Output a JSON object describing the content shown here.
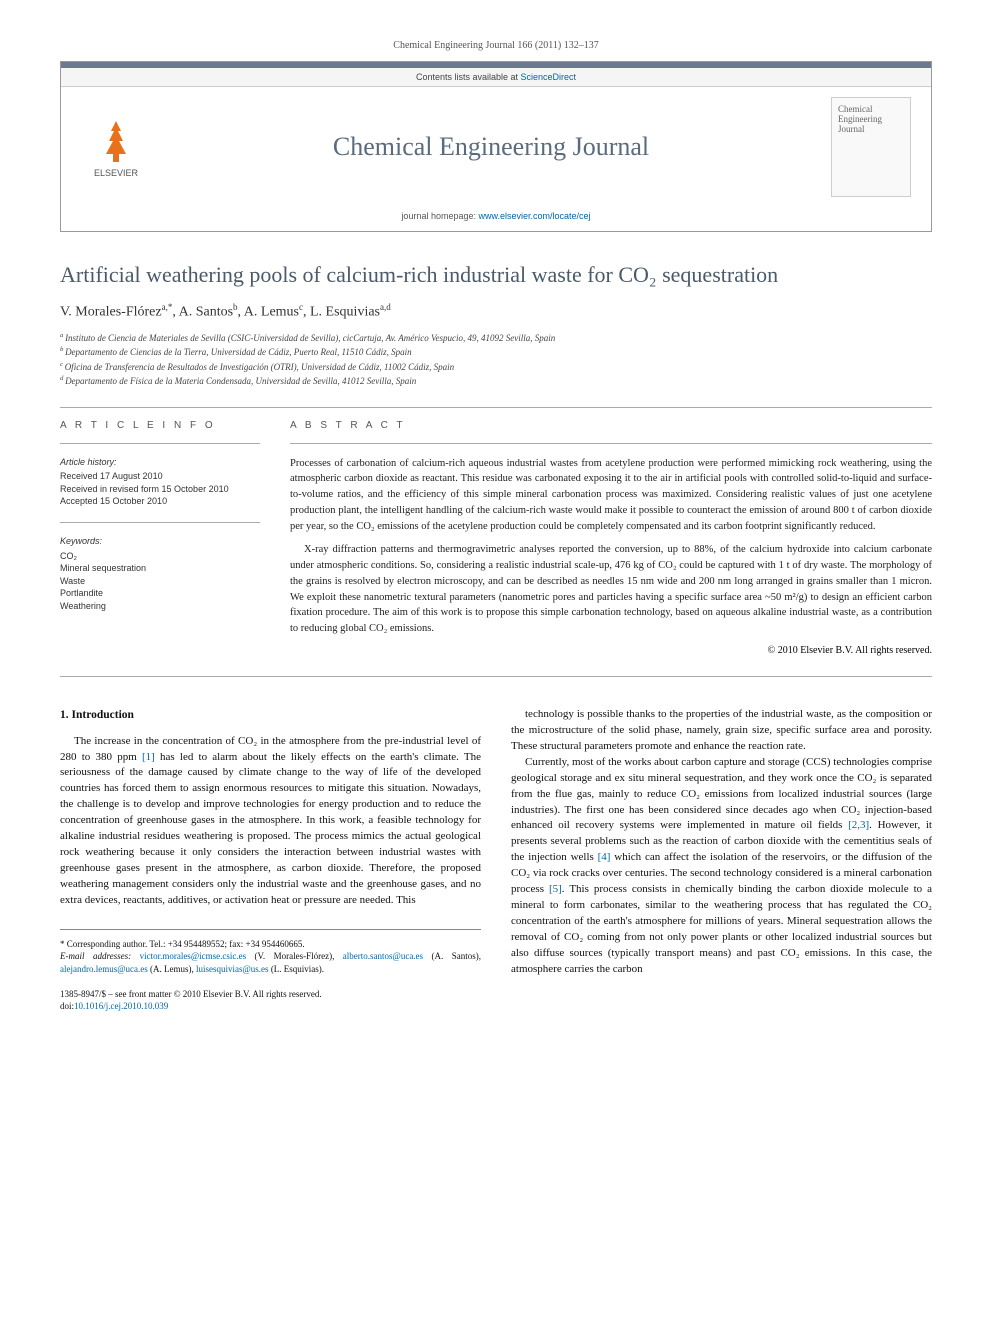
{
  "citation": "Chemical Engineering Journal 166 (2011) 132–137",
  "header": {
    "contents_line": "Contents lists available at ScienceDirect",
    "sciencedirect": "ScienceDirect",
    "journal_name": "Chemical Engineering Journal",
    "homepage_label": "journal homepage: ",
    "homepage_url": "www.elsevier.com/locate/cej",
    "logo_text": "ELSEVIER",
    "cover_line1": "Chemical",
    "cover_line2": "Engineering",
    "cover_line3": "Journal"
  },
  "title": "Artificial weathering pools of calcium-rich industrial waste for CO₂ sequestration",
  "authors_html": "V. Morales-Flórez",
  "authors": [
    {
      "name": "V. Morales-Flórez",
      "sup": "a,*"
    },
    {
      "name": "A. Santos",
      "sup": "b"
    },
    {
      "name": "A. Lemus",
      "sup": "c"
    },
    {
      "name": "L. Esquivias",
      "sup": "a,d"
    }
  ],
  "affiliations": [
    {
      "key": "a",
      "text": "Instituto de Ciencia de Materiales de Sevilla (CSIC-Universidad de Sevilla), cicCartuja, Av. Américo Vespucio, 49, 41092 Sevilla, Spain"
    },
    {
      "key": "b",
      "text": "Departamento de Ciencias de la Tierra, Universidad de Cádiz, Puerto Real, 11510 Cádiz, Spain"
    },
    {
      "key": "c",
      "text": "Oficina de Transferencia de Resultados de Investigación (OTRI), Universidad de Cádiz, 11002 Cádiz, Spain"
    },
    {
      "key": "d",
      "text": "Departamento de Física de la Materia Condensada, Universidad de Sevilla, 41012 Sevilla, Spain"
    }
  ],
  "article_info": {
    "heading": "A R T I C L E   I N F O",
    "history_label": "Article history:",
    "history": [
      "Received 17 August 2010",
      "Received in revised form 15 October 2010",
      "Accepted 15 October 2010"
    ],
    "keywords_label": "Keywords:",
    "keywords": [
      "CO₂",
      "Mineral sequestration",
      "Waste",
      "Portlandite",
      "Weathering"
    ]
  },
  "abstract": {
    "heading": "A B S T R A C T",
    "paragraphs": [
      "Processes of carbonation of calcium-rich aqueous industrial wastes from acetylene production were performed mimicking rock weathering, using the atmospheric carbon dioxide as reactant. This residue was carbonated exposing it to the air in artificial pools with controlled solid-to-liquid and surface-to-volume ratios, and the efficiency of this simple mineral carbonation process was maximized. Considering realistic values of just one acetylene production plant, the intelligent handling of the calcium-rich waste would make it possible to counteract the emission of around 800 t of carbon dioxide per year, so the CO₂ emissions of the acetylene production could be completely compensated and its carbon footprint significantly reduced.",
      "X-ray diffraction patterns and thermogravimetric analyses reported the conversion, up to 88%, of the calcium hydroxide into calcium carbonate under atmospheric conditions. So, considering a realistic industrial scale-up, 476 kg of CO₂ could be captured with 1 t of dry waste. The morphology of the grains is resolved by electron microscopy, and can be described as needles 15 nm wide and 200 nm long arranged in grains smaller than 1 micron. We exploit these nanometric textural parameters (nanometric pores and particles having a specific surface area ~50 m²/g) to design an efficient carbon fixation procedure. The aim of this work is to propose this simple carbonation technology, based on aqueous alkaline industrial waste, as a contribution to reducing global CO₂ emissions."
    ],
    "copyright": "© 2010 Elsevier B.V. All rights reserved."
  },
  "body": {
    "intro_heading": "1. Introduction",
    "col1_paras": [
      "The increase in the concentration of CO₂ in the atmosphere from the pre-industrial level of 280 to 380 ppm [1] has led to alarm about the likely effects on the earth's climate. The seriousness of the damage caused by climate change to the way of life of the developed countries has forced them to assign enormous resources to mitigate this situation. Nowadays, the challenge is to develop and improve technologies for energy production and to reduce the concentration of greenhouse gases in the atmosphere. In this work, a feasible technology for alkaline industrial residues weathering is proposed. The process mimics the actual geological rock weathering because it only considers the interaction between industrial wastes with greenhouse gases present in the atmosphere, as carbon dioxide. Therefore, the proposed weathering management considers only the industrial waste and the greenhouse gases, and no extra devices, reactants, additives, or activation heat or pressure are needed. This"
    ],
    "col2_paras": [
      "technology is possible thanks to the properties of the industrial waste, as the composition or the microstructure of the solid phase, namely, grain size, specific surface area and porosity. These structural parameters promote and enhance the reaction rate.",
      "Currently, most of the works about carbon capture and storage (CCS) technologies comprise geological storage and ex situ mineral sequestration, and they work once the CO₂ is separated from the flue gas, mainly to reduce CO₂ emissions from localized industrial sources (large industries). The first one has been considered since decades ago when CO₂ injection-based enhanced oil recovery systems were implemented in mature oil fields [2,3]. However, it presents several problems such as the reaction of carbon dioxide with the cementitius seals of the injection wells [4] which can affect the isolation of the reservoirs, or the diffusion of the CO₂ via rock cracks over centuries. The second technology considered is a mineral carbonation process [5]. This process consists in chemically binding the carbon dioxide molecule to a mineral to form carbonates, similar to the weathering process that has regulated the CO₂ concentration of the earth's atmosphere for millions of years. Mineral sequestration allows the removal of CO₂ coming from not only power plants or other localized industrial sources but also diffuse sources (typically transport means) and past CO₂ emissions. In this case, the atmosphere carries the carbon"
    ]
  },
  "footnotes": {
    "corresponding": "* Corresponding author. Tel.: +34 954489552; fax: +34 954460665.",
    "emails_label": "E-mail addresses: ",
    "emails": [
      {
        "addr": "victor.morales@icmse.csic.es",
        "who": "(V. Morales-Flórez)"
      },
      {
        "addr": "alberto.santos@uca.es",
        "who": "(A. Santos)"
      },
      {
        "addr": "alejandro.lemus@uca.es",
        "who": "(A. Lemus)"
      },
      {
        "addr": "luisesquivias@us.es",
        "who": "(L. Esquivias)."
      }
    ],
    "issn": "1385-8947/$ – see front matter © 2010 Elsevier B.V. All rights reserved.",
    "doi_label": "doi:",
    "doi": "10.1016/j.cej.2010.10.039"
  },
  "refs": {
    "1": "[1]",
    "2": "[2,3]",
    "4": "[4]",
    "5": "[5]"
  },
  "colors": {
    "accent_bar": "#6b7a8f",
    "title_color": "#4a5a6a",
    "link": "#0066aa",
    "elsevier_orange": "#e9711c"
  }
}
